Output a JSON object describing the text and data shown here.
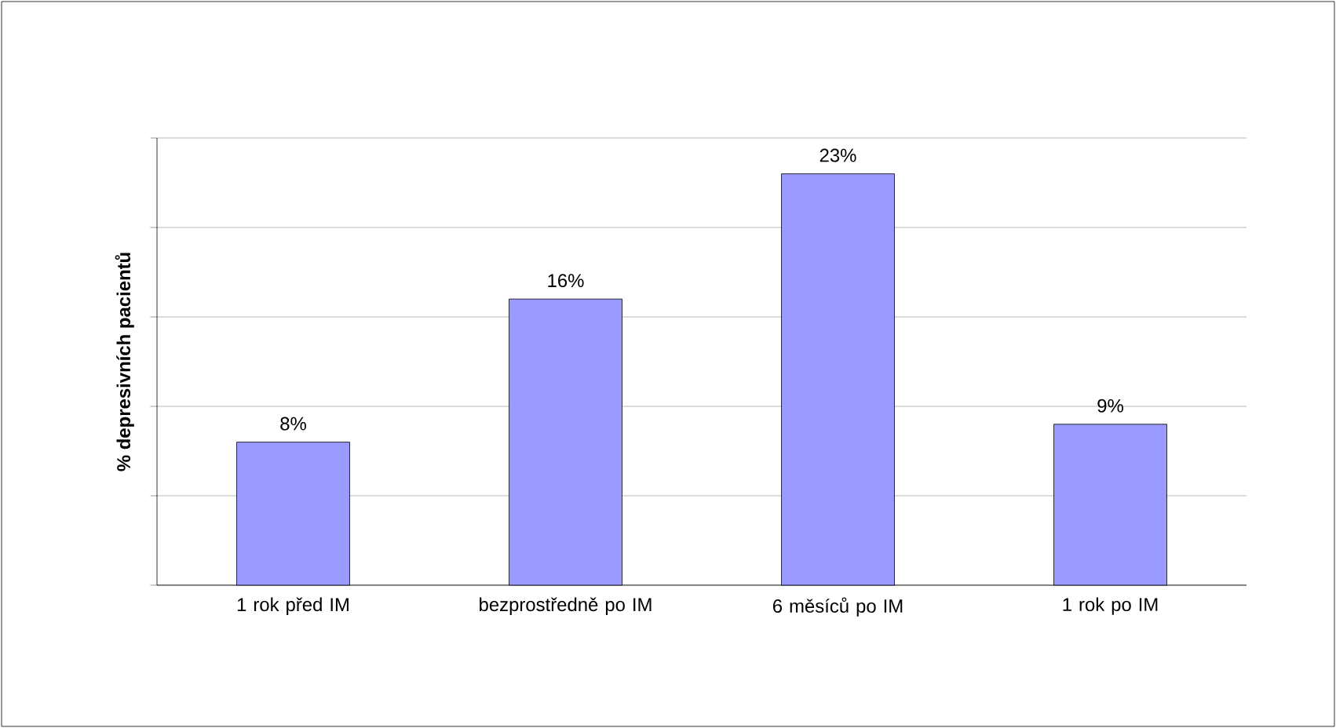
{
  "chart_data": {
    "type": "bar",
    "ylabel": "% depresivních pacientů",
    "categories": [
      "1 rok před IM",
      "bezprostředně po IM",
      "6 měsíců po IM",
      "1 rok po IM"
    ],
    "values": [
      8,
      16,
      23,
      9
    ],
    "value_labels": [
      "8%",
      "16%",
      "23%",
      "9%"
    ],
    "color": "#9999ff",
    "ylim": [
      0,
      25
    ],
    "yticks": [
      {
        "value": 0,
        "label": null
      },
      {
        "value": 5,
        "label": null
      },
      {
        "value": 10,
        "label": null
      },
      {
        "value": 15,
        "label": null
      },
      {
        "value": 20,
        "label": null
      },
      {
        "value": 25,
        "label": null
      }
    ],
    "tick_labels": "x",
    "grid": "y"
  }
}
